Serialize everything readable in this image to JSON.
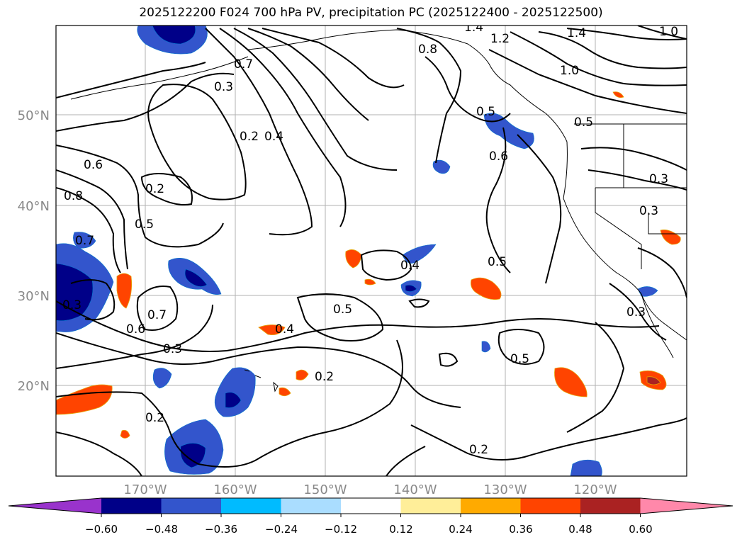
{
  "title": "2025122200 F024 700 hPa PV, precipitation PC (2025122400 - 2025122500)",
  "axes": {
    "lat_labels": [
      "50°N",
      "40°N",
      "30°N",
      "20°N"
    ],
    "lon_labels": [
      "170°W",
      "160°W",
      "150°W",
      "140°W",
      "130°W",
      "120°W"
    ],
    "label_color": "#888888"
  },
  "contour_labels": [
    "1.4",
    "1.2",
    "1.4",
    "1.0",
    "1.0",
    "0.8",
    "0.7",
    "0.3",
    "0.2",
    "0.4",
    "0.6",
    "0.8",
    "0.2",
    "0.5",
    "0.7",
    "0.3",
    "0.7",
    "0.6",
    "0.3",
    "0.2",
    "0.4",
    "0.2",
    "0.5",
    "0.4",
    "0.5",
    "0.2",
    "0.5",
    "0.5",
    "0.6",
    "0.5",
    "0.3",
    "0.3",
    "0.3"
  ],
  "colorbar": {
    "colors": [
      "#9933cc",
      "#000088",
      "#3355cc",
      "#00bbff",
      "#aaddff",
      "#ffffff",
      "#ffee99",
      "#ffaa00",
      "#ff4400",
      "#aa2222",
      "#ff88aa"
    ],
    "tick_labels": [
      "−0.60",
      "−0.48",
      "−0.36",
      "−0.24",
      "−0.12",
      "0.12",
      "0.24",
      "0.36",
      "0.48",
      "0.60"
    ]
  },
  "palette": {
    "pos_light": "#ffee99",
    "pos_mid": "#ffaa00",
    "pos_strong": "#ff4400",
    "pos_max": "#aa2222",
    "neg_light": "#aaddff",
    "neg_mid": "#00bbff",
    "neg_strong": "#3355cc",
    "neg_max": "#000088"
  }
}
